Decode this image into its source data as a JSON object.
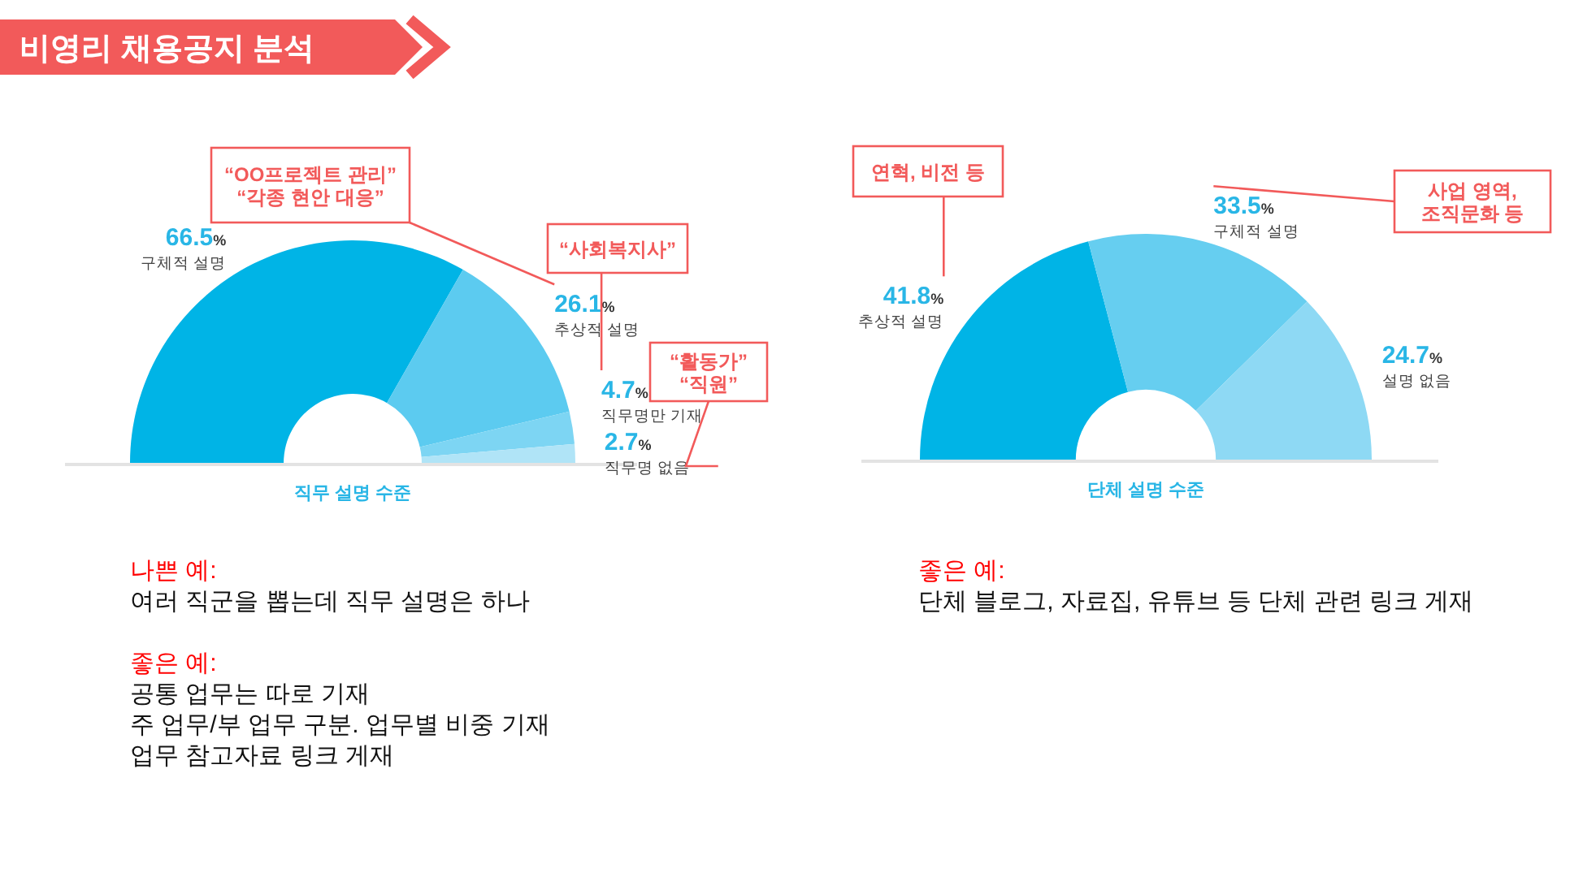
{
  "chart_data": [
    {
      "type": "donut",
      "title": "비영리 채용공지 분석",
      "xlabel": "직무 설명 수준",
      "categories": [
        "구체적 설명",
        "추상적 설명",
        "직무명만 기재",
        "직무명 없음"
      ],
      "values": [
        66.5,
        26.1,
        4.7,
        2.7
      ],
      "colors": [
        "#00b4e6",
        "#5ccbf0",
        "#7dd5f3",
        "#b0e4f7"
      ],
      "value_labels": [
        "66.5%",
        "26.1%",
        "4.7%",
        "2.7%"
      ],
      "annotations": [
        {
          "text": "“OO프로젝트 관리”\n“각종 현안 대응”",
          "x": "추상적 설명"
        },
        {
          "text": "“사회복지사”",
          "x": "직무명만 기재"
        },
        {
          "text": "“활동가”\n“직원”",
          "x": "직무명 없음"
        },
        "나쁜 예:\n여러 직군을 뽑는데 직무 설명은 하나",
        "좋은 예:\n공통 업무는 따로 기재\n주 업무/부 업무 구분. 업무별 비중 기재\n업무 참고자료 링크 게재"
      ]
    },
    {
      "type": "donut",
      "xlabel": "단체 설명 수준",
      "categories": [
        "추상적 설명",
        "구체적 설명",
        "설명 없음"
      ],
      "values": [
        41.8,
        33.5,
        24.7
      ],
      "colors": [
        "#00b4e6",
        "#66cef0",
        "#8ed9f4"
      ],
      "value_labels": [
        "41.8%",
        "33.5%",
        "24.7%"
      ],
      "annotations": [
        {
          "text": "연혁, 비전 등",
          "x": "추상적 설명"
        },
        {
          "text": "사업 영역,\n조직문화 등",
          "x": "구체적 설명"
        },
        "좋은 예:\n단체 블로그, 자료집, 유튜브 등 단체 관련 링크 게재"
      ]
    }
  ]
}
